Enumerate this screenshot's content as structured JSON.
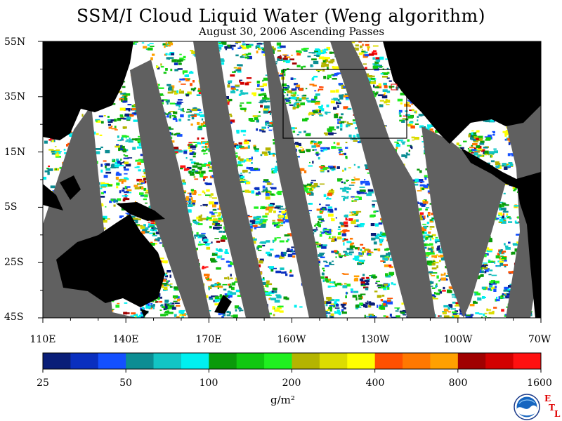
{
  "title": "SSM/I Cloud Liquid Water (Weng algorithm)",
  "subtitle": "August 30, 2006   Ascending Passes",
  "lat_labels": [
    "55N",
    "35N",
    "15N",
    "5S",
    "25S",
    "45S"
  ],
  "lon_labels": [
    "110E",
    "140E",
    "170E",
    "160W",
    "130W",
    "100W",
    "70W"
  ],
  "colorbar": {
    "labels": [
      "25",
      "50",
      "100",
      "200",
      "400",
      "800",
      "1600"
    ],
    "units": "g/m²",
    "colors": [
      "#0a1e78",
      "#0a2fbf",
      "#1450ff",
      "#0c8d93",
      "#12c4c4",
      "#00f0f0",
      "#0a9a0a",
      "#10c810",
      "#20f020",
      "#b4b400",
      "#dcdc00",
      "#ffff00",
      "#ff5000",
      "#ff7800",
      "#ffa000",
      "#a00000",
      "#d20000",
      "#ff1010"
    ]
  },
  "logo": {
    "text": "NOAA",
    "side_letters": [
      "E",
      "T",
      "L"
    ]
  },
  "map_colors": {
    "land": "#000000",
    "swath_gap": "#606060",
    "ocean": "#ffffff"
  }
}
